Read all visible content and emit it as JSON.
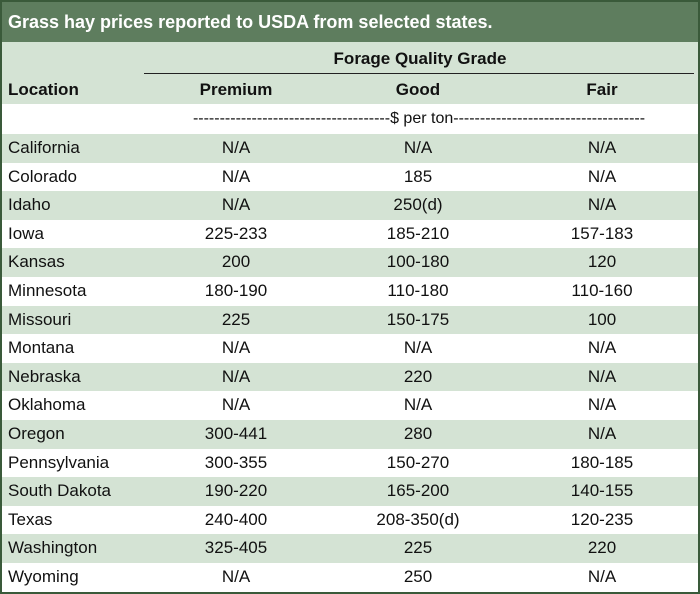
{
  "title": "Grass hay prices reported to USDA from selected states.",
  "header": {
    "group": "Forage Quality Grade",
    "location": "Location",
    "premium": "Premium",
    "good": "Good",
    "fair": "Fair",
    "units": "-------------------------------------$ per ton------------------------------------"
  },
  "rows": [
    {
      "location": "California",
      "premium": "N/A",
      "good": "N/A",
      "fair": "N/A"
    },
    {
      "location": "Colorado",
      "premium": "N/A",
      "good": "185",
      "fair": "N/A"
    },
    {
      "location": "Idaho",
      "premium": "N/A",
      "good": "250(d)",
      "fair": "N/A"
    },
    {
      "location": "Iowa",
      "premium": "225-233",
      "good": "185-210",
      "fair": "157-183"
    },
    {
      "location": "Kansas",
      "premium": "200",
      "good": "100-180",
      "fair": "120"
    },
    {
      "location": "Minnesota",
      "premium": "180-190",
      "good": "110-180",
      "fair": "110-160"
    },
    {
      "location": "Missouri",
      "premium": "225",
      "good": "150-175",
      "fair": "100"
    },
    {
      "location": "Montana",
      "premium": "N/A",
      "good": "N/A",
      "fair": "N/A"
    },
    {
      "location": "Nebraska",
      "premium": "N/A",
      "good": "220",
      "fair": "N/A"
    },
    {
      "location": "Oklahoma",
      "premium": "N/A",
      "good": "N/A",
      "fair": "N/A"
    },
    {
      "location": "Oregon",
      "premium": "300-441",
      "good": "280",
      "fair": "N/A"
    },
    {
      "location": "Pennsylvania",
      "premium": "300-355",
      "good": "150-270",
      "fair": "180-185"
    },
    {
      "location": "South Dakota",
      "premium": "190-220",
      "good": "165-200",
      "fair": "140-155"
    },
    {
      "location": "Texas",
      "premium": "240-400",
      "good": "208-350(d)",
      "fair": "120-235"
    },
    {
      "location": "Washington",
      "premium": "325-405",
      "good": "225",
      "fair": "220"
    },
    {
      "location": "Wyoming",
      "premium": "N/A",
      "good": "250",
      "fair": "N/A"
    }
  ],
  "colors": {
    "title_bg": "#5e7d5e",
    "band": "#d4e3d4",
    "border": "#3a5a3a"
  }
}
